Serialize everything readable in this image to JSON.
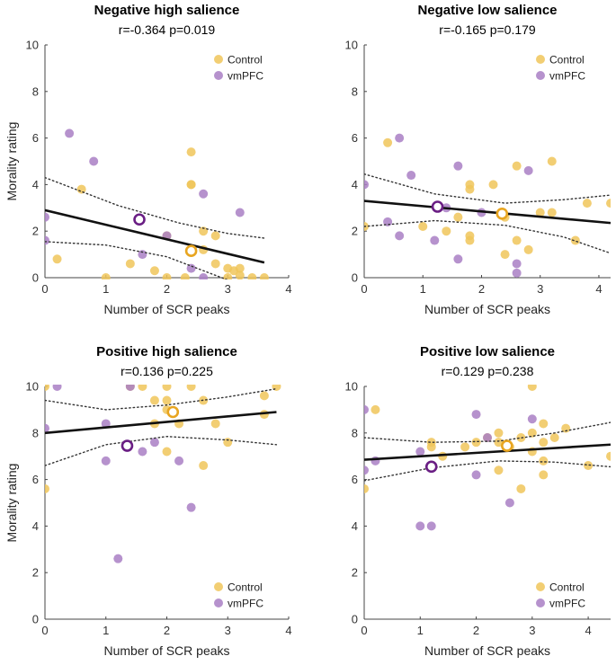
{
  "colors": {
    "control": "#F0C65A",
    "vmpfc": "#A97FC4",
    "control_mean": "#E8A520",
    "vmpfc_mean": "#6A1E84",
    "fit_line": "#111111",
    "ci_line": "#333333"
  },
  "chart_data": [
    {
      "type": "scatter",
      "title": "Negative high salience",
      "stats": "r=-0.364 p=0.019",
      "xlabel": "Number of SCR peaks",
      "ylabel": "Morality rating",
      "xlim": [
        0,
        4
      ],
      "ylim": [
        0,
        10
      ],
      "xticks": [
        "0",
        "1",
        "2",
        "3",
        "4"
      ],
      "yticks": [
        "0",
        "2",
        "4",
        "6",
        "8",
        "10"
      ],
      "legend": [
        "Control",
        "vmPFC"
      ],
      "legend_position": "top-right",
      "fit": [
        [
          0,
          2.9
        ],
        [
          3.6,
          0.65
        ]
      ],
      "ci_upper": [
        [
          0,
          4.3
        ],
        [
          1.2,
          3.1
        ],
        [
          2.2,
          2.35
        ],
        [
          3.0,
          1.9
        ],
        [
          3.6,
          1.7
        ]
      ],
      "ci_lower": [
        [
          0,
          1.55
        ],
        [
          1.0,
          1.4
        ],
        [
          2.0,
          0.9
        ],
        [
          3.0,
          -0.1
        ],
        [
          3.6,
          -0.6
        ]
      ],
      "series": [
        {
          "name": "Control",
          "points": [
            [
              0.2,
              0.8
            ],
            [
              0.6,
              3.8
            ],
            [
              1.0,
              0.0
            ],
            [
              1.4,
              0.6
            ],
            [
              1.8,
              0.3
            ],
            [
              2.0,
              0.0
            ],
            [
              2.0,
              1.8
            ],
            [
              2.3,
              0.0
            ],
            [
              2.4,
              5.4
            ],
            [
              2.4,
              4.0
            ],
            [
              2.4,
              4.0
            ],
            [
              2.6,
              2.0
            ],
            [
              2.6,
              1.2
            ],
            [
              2.8,
              1.8
            ],
            [
              2.8,
              0.6
            ],
            [
              3.0,
              0.4
            ],
            [
              3.0,
              0.0
            ],
            [
              3.1,
              0.3
            ],
            [
              3.2,
              0.4
            ],
            [
              3.2,
              0.1
            ],
            [
              3.4,
              0.0
            ],
            [
              3.6,
              0.0
            ]
          ]
        },
        {
          "name": "vmPFC",
          "points": [
            [
              0.0,
              2.6
            ],
            [
              0.0,
              1.6
            ],
            [
              0.4,
              6.2
            ],
            [
              0.8,
              5.0
            ],
            [
              1.6,
              1.0
            ],
            [
              2.0,
              1.8
            ],
            [
              2.4,
              0.4
            ],
            [
              2.6,
              3.6
            ],
            [
              2.6,
              0.0
            ],
            [
              3.2,
              2.8
            ]
          ]
        }
      ],
      "means": {
        "Control": [
          2.4,
          1.15
        ],
        "vmPFC": [
          1.55,
          2.5
        ]
      }
    },
    {
      "type": "scatter",
      "title": "Negative low salience",
      "stats": "r=-0.165 p=0.179",
      "xlabel": "Number of SCR peaks",
      "ylabel": "",
      "xlim": [
        0,
        4.2
      ],
      "ylim": [
        0,
        10
      ],
      "xticks": [
        "0",
        "1",
        "2",
        "3",
        "4"
      ],
      "yticks": [
        "0",
        "2",
        "4",
        "6",
        "8",
        "10"
      ],
      "legend": [
        "Control",
        "vmPFC"
      ],
      "legend_position": "top-right",
      "fit": [
        [
          0,
          3.3
        ],
        [
          4.2,
          2.35
        ]
      ],
      "ci_upper": [
        [
          0,
          4.45
        ],
        [
          1.2,
          3.6
        ],
        [
          2.4,
          3.2
        ],
        [
          3.4,
          3.35
        ],
        [
          4.2,
          3.55
        ]
      ],
      "ci_lower": [
        [
          0,
          2.2
        ],
        [
          1.2,
          2.45
        ],
        [
          2.4,
          2.25
        ],
        [
          3.4,
          1.75
        ],
        [
          4.2,
          1.05
        ]
      ],
      "series": [
        {
          "name": "Control",
          "points": [
            [
              0.0,
              2.2
            ],
            [
              0.4,
              5.8
            ],
            [
              1.0,
              2.2
            ],
            [
              1.4,
              2.0
            ],
            [
              1.6,
              2.6
            ],
            [
              1.8,
              4.0
            ],
            [
              1.8,
              3.8
            ],
            [
              1.8,
              1.8
            ],
            [
              1.8,
              1.6
            ],
            [
              2.2,
              4.0
            ],
            [
              2.4,
              2.6
            ],
            [
              2.4,
              1.0
            ],
            [
              2.6,
              4.8
            ],
            [
              2.6,
              1.6
            ],
            [
              2.8,
              1.2
            ],
            [
              3.0,
              2.8
            ],
            [
              3.2,
              5.0
            ],
            [
              3.2,
              2.8
            ],
            [
              3.6,
              1.6
            ],
            [
              3.8,
              3.2
            ],
            [
              4.2,
              3.2
            ]
          ]
        },
        {
          "name": "vmPFC",
          "points": [
            [
              0.0,
              4.0
            ],
            [
              0.4,
              2.4
            ],
            [
              0.6,
              6.0
            ],
            [
              0.6,
              1.8
            ],
            [
              0.8,
              4.4
            ],
            [
              1.2,
              1.6
            ],
            [
              1.4,
              3.0
            ],
            [
              1.6,
              4.8
            ],
            [
              1.6,
              0.8
            ],
            [
              2.0,
              2.8
            ],
            [
              2.6,
              0.6
            ],
            [
              2.6,
              0.2
            ],
            [
              2.8,
              4.6
            ]
          ]
        },
        {
          "name": "",
          "points": []
        }
      ],
      "means": {
        "Control": [
          2.35,
          2.75
        ],
        "vmPFC": [
          1.25,
          3.05
        ]
      }
    },
    {
      "type": "scatter",
      "title": "Positive high salience",
      "stats": "r=0.136 p=0.225",
      "xlabel": "Number of SCR peaks",
      "ylabel": "Morality rating",
      "xlim": [
        0,
        4
      ],
      "ylim": [
        0,
        10
      ],
      "xticks": [
        "0",
        "1",
        "2",
        "3",
        "4"
      ],
      "yticks": [
        "0",
        "2",
        "4",
        "6",
        "8",
        "10"
      ],
      "legend": [
        "Control",
        "vmPFC"
      ],
      "legend_position": "bottom-right",
      "fit": [
        [
          0,
          8.0
        ],
        [
          3.8,
          8.9
        ]
      ],
      "ci_upper": [
        [
          0,
          9.4
        ],
        [
          1.0,
          9.0
        ],
        [
          2.0,
          9.2
        ],
        [
          3.0,
          9.55
        ],
        [
          3.8,
          9.9
        ]
      ],
      "ci_lower": [
        [
          0,
          6.6
        ],
        [
          1.0,
          7.5
        ],
        [
          2.0,
          7.85
        ],
        [
          3.0,
          7.7
        ],
        [
          3.8,
          7.5
        ]
      ],
      "series": [
        {
          "name": "Control",
          "points": [
            [
              0.0,
              10.0
            ],
            [
              0.0,
              5.6
            ],
            [
              1.4,
              10.0
            ],
            [
              1.6,
              10.0
            ],
            [
              1.8,
              9.4
            ],
            [
              1.8,
              8.4
            ],
            [
              2.0,
              10.0
            ],
            [
              2.0,
              9.4
            ],
            [
              2.0,
              9.0
            ],
            [
              2.0,
              7.2
            ],
            [
              2.2,
              8.4
            ],
            [
              2.4,
              10.0
            ],
            [
              2.6,
              9.4
            ],
            [
              2.6,
              6.6
            ],
            [
              2.8,
              8.4
            ],
            [
              3.0,
              7.6
            ],
            [
              3.6,
              9.6
            ],
            [
              3.6,
              8.8
            ],
            [
              3.8,
              10.0
            ]
          ]
        },
        {
          "name": "vmPFC",
          "points": [
            [
              0.0,
              8.2
            ],
            [
              0.2,
              10.0
            ],
            [
              1.0,
              6.8
            ],
            [
              1.0,
              8.4
            ],
            [
              1.2,
              2.6
            ],
            [
              1.4,
              10.0
            ],
            [
              1.6,
              7.2
            ],
            [
              1.8,
              7.6
            ],
            [
              2.2,
              6.8
            ],
            [
              2.4,
              4.8
            ]
          ]
        }
      ],
      "means": {
        "Control": [
          2.1,
          8.9
        ],
        "vmPFC": [
          1.35,
          7.45
        ]
      }
    },
    {
      "type": "scatter",
      "title": "Positive low salience",
      "stats": "r=0.129 p=0.238",
      "xlabel": "Number of SCR peaks",
      "ylabel": "",
      "xlim": [
        0,
        4.4
      ],
      "ylim": [
        0,
        10
      ],
      "xticks": [
        "0",
        "1",
        "2",
        "3",
        "4"
      ],
      "yticks": [
        "0",
        "2",
        "4",
        "6",
        "8",
        "10"
      ],
      "legend": [
        "Control",
        "vmPFC"
      ],
      "legend_position": "bottom-right",
      "fit": [
        [
          0,
          6.85
        ],
        [
          4.4,
          7.5
        ]
      ],
      "ci_upper": [
        [
          0,
          7.8
        ],
        [
          1.2,
          7.6
        ],
        [
          2.4,
          7.65
        ],
        [
          3.4,
          8.0
        ],
        [
          4.4,
          8.45
        ]
      ],
      "ci_lower": [
        [
          0,
          5.95
        ],
        [
          1.2,
          6.5
        ],
        [
          2.4,
          6.8
        ],
        [
          3.4,
          6.75
        ],
        [
          4.4,
          6.55
        ]
      ],
      "series": [
        {
          "name": "Control",
          "points": [
            [
              0.0,
              5.6
            ],
            [
              0.2,
              9.0
            ],
            [
              1.2,
              7.6
            ],
            [
              1.2,
              7.4
            ],
            [
              1.4,
              7.0
            ],
            [
              1.8,
              7.4
            ],
            [
              2.0,
              7.6
            ],
            [
              2.2,
              7.8
            ],
            [
              2.4,
              8.0
            ],
            [
              2.4,
              7.6
            ],
            [
              2.4,
              6.4
            ],
            [
              2.6,
              7.4
            ],
            [
              2.8,
              7.8
            ],
            [
              2.8,
              5.6
            ],
            [
              3.0,
              10.0
            ],
            [
              3.0,
              8.0
            ],
            [
              3.0,
              7.2
            ],
            [
              3.2,
              8.4
            ],
            [
              3.2,
              7.6
            ],
            [
              3.2,
              6.8
            ],
            [
              3.2,
              6.2
            ],
            [
              3.4,
              7.8
            ],
            [
              3.6,
              8.2
            ],
            [
              4.0,
              6.6
            ],
            [
              4.4,
              7.0
            ]
          ]
        },
        {
          "name": "vmPFC",
          "points": [
            [
              0.0,
              9.0
            ],
            [
              0.0,
              6.4
            ],
            [
              0.2,
              6.8
            ],
            [
              1.0,
              7.2
            ],
            [
              1.0,
              4.0
            ],
            [
              1.2,
              4.0
            ],
            [
              1.2,
              6.6
            ],
            [
              2.0,
              8.8
            ],
            [
              2.0,
              6.2
            ],
            [
              2.2,
              7.8
            ],
            [
              2.6,
              5.0
            ],
            [
              3.0,
              8.6
            ]
          ]
        }
      ],
      "means": {
        "Control": [
          2.55,
          7.45
        ],
        "vmPFC": [
          1.2,
          6.55
        ]
      }
    }
  ]
}
